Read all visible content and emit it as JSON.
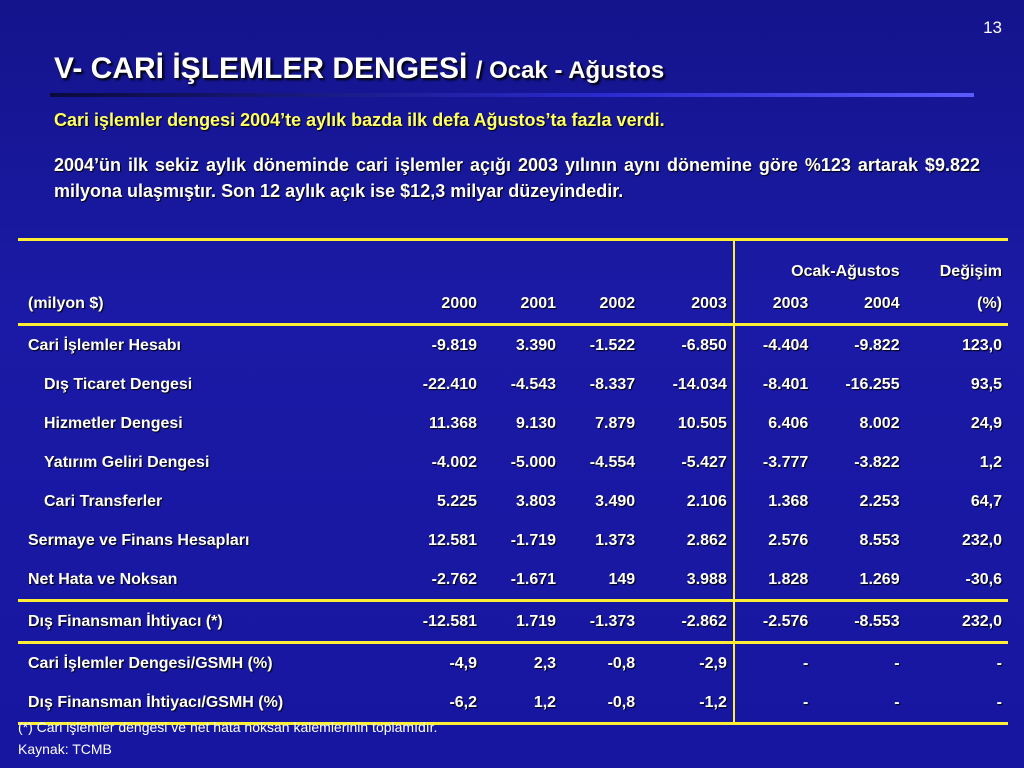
{
  "slide_number": "13",
  "title": {
    "main": "V- CARİ İŞLEMLER DENGESİ",
    "sub": "/ Ocak - Ağustos"
  },
  "paragraph1": "Cari işlemler dengesi 2004’te aylık bazda ilk defa Ağustos’ta fazla verdi.",
  "paragraph2": "2004’ün ilk sekiz aylık döneminde cari işlemler açığı 2003 yılının aynı dönemine göre %123 artarak $9.822 milyona ulaşmıştır. Son 12 aylık açık ise $12,3 milyar düzeyindedir.",
  "table": {
    "header_group": {
      "period": "Ocak-Ağustos",
      "change": "Değişim"
    },
    "header": {
      "unit": "(milyon $)",
      "y2000": "2000",
      "y2001": "2001",
      "y2002": "2002",
      "y2003": "2003",
      "p2003": "2003",
      "p2004": "2004",
      "pct": "(%)"
    },
    "rows": [
      {
        "label": "Cari İşlemler Hesabı",
        "v": [
          "-9.819",
          "3.390",
          "-1.522",
          "-6.850",
          "-4.404",
          "-9.822",
          "123,0"
        ]
      },
      {
        "label": "Dış Ticaret Dengesi",
        "v": [
          "-22.410",
          "-4.543",
          "-8.337",
          "-14.034",
          "-8.401",
          "-16.255",
          "93,5"
        ]
      },
      {
        "label": "Hizmetler Dengesi",
        "v": [
          "11.368",
          "9.130",
          "7.879",
          "10.505",
          "6.406",
          "8.002",
          "24,9"
        ]
      },
      {
        "label": "Yatırım Geliri Dengesi",
        "v": [
          "-4.002",
          "-5.000",
          "-4.554",
          "-5.427",
          "-3.777",
          "-3.822",
          "1,2"
        ]
      },
      {
        "label": "Cari Transferler",
        "v": [
          "5.225",
          "3.803",
          "3.490",
          "2.106",
          "1.368",
          "2.253",
          "64,7"
        ]
      },
      {
        "label": "Sermaye ve Finans Hesapları",
        "v": [
          "12.581",
          "-1.719",
          "1.373",
          "2.862",
          "2.576",
          "8.553",
          "232,0"
        ]
      },
      {
        "label": "Net Hata ve Noksan",
        "v": [
          "-2.762",
          "-1.671",
          "149",
          "3.988",
          "1.828",
          "1.269",
          "-30,6"
        ]
      },
      {
        "label": "Dış Finansman İhtiyacı (*)",
        "v": [
          "-12.581",
          "1.719",
          "-1.373",
          "-2.862",
          "-2.576",
          "-8.553",
          "232,0"
        ]
      },
      {
        "label": "Cari İşlemler Dengesi/GSMH (%)",
        "v": [
          "-4,9",
          "2,3",
          "-0,8",
          "-2,9",
          "-",
          "-",
          "-"
        ]
      },
      {
        "label": "Dış Finansman İhtiyacı/GSMH (%)",
        "v": [
          "-6,2",
          "1,2",
          "-0,8",
          "-1,2",
          "-",
          "-",
          "-"
        ]
      }
    ]
  },
  "footnote": "(*) Cari işlemler dengesi ve net hata noksan kalemlerinin toplamıdır.",
  "source": "Kaynak: TCMB"
}
